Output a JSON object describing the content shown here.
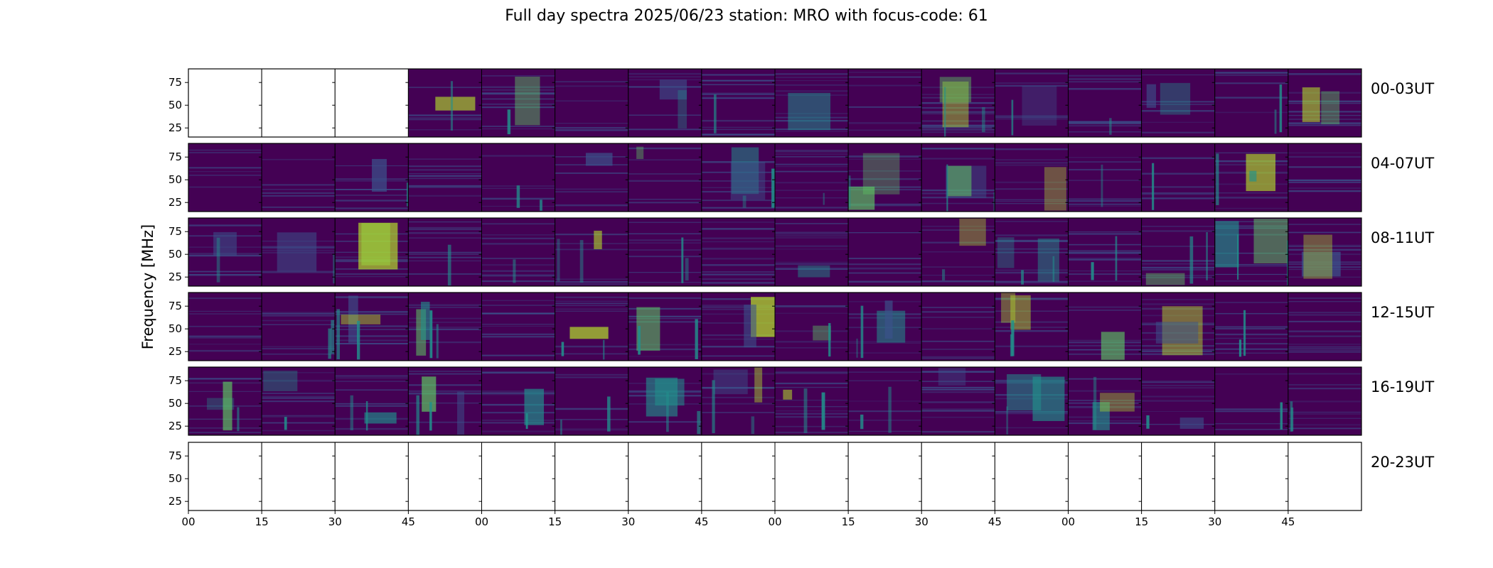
{
  "title": "Full day spectra 2025/06/23 station: MRO with focus-code: 61",
  "ylabel": "Frequency [MHz]",
  "colors": {
    "background": "#440154",
    "mid": "#3b528b",
    "teal": "#21918c",
    "bright": "#5ec962",
    "peak": "#b5de2b",
    "blank": "#ffffff"
  },
  "chart_data": {
    "type": "heatmap",
    "title": "Full day spectra 2025/06/23 station: MRO with focus-code: 61",
    "ylabel": "Frequency [MHz]",
    "xlabel": "",
    "ylim": [
      15,
      90
    ],
    "yticks": [
      "25",
      "50",
      "75"
    ],
    "xticks": [
      "00",
      "15",
      "30",
      "45",
      "00",
      "15",
      "30",
      "45",
      "00",
      "15",
      "30",
      "45",
      "00",
      "15",
      "30",
      "45"
    ],
    "colormap": "viridis",
    "grid": false,
    "rows": [
      {
        "label": "00-03UT",
        "panels": [
          0,
          0,
          0,
          1,
          1,
          1,
          1,
          1,
          1,
          1,
          1,
          1,
          1,
          1,
          1,
          1
        ]
      },
      {
        "label": "04-07UT",
        "panels": [
          1,
          1,
          1,
          1,
          1,
          1,
          1,
          1,
          1,
          1,
          1,
          1,
          1,
          1,
          1,
          1
        ]
      },
      {
        "label": "08-11UT",
        "panels": [
          1,
          1,
          1,
          1,
          1,
          1,
          1,
          1,
          1,
          1,
          1,
          1,
          1,
          1,
          1,
          1
        ]
      },
      {
        "label": "12-15UT",
        "panels": [
          1,
          1,
          1,
          1,
          1,
          1,
          1,
          1,
          1,
          1,
          1,
          1,
          1,
          1,
          1,
          1
        ]
      },
      {
        "label": "16-19UT",
        "panels": [
          1,
          1,
          1,
          1,
          1,
          1,
          1,
          1,
          1,
          1,
          1,
          1,
          1,
          1,
          1,
          1
        ]
      },
      {
        "label": "20-23UT",
        "panels": [
          0,
          0,
          0,
          0,
          0,
          0,
          0,
          0,
          0,
          0,
          0,
          0,
          0,
          0,
          0,
          0
        ]
      }
    ]
  }
}
